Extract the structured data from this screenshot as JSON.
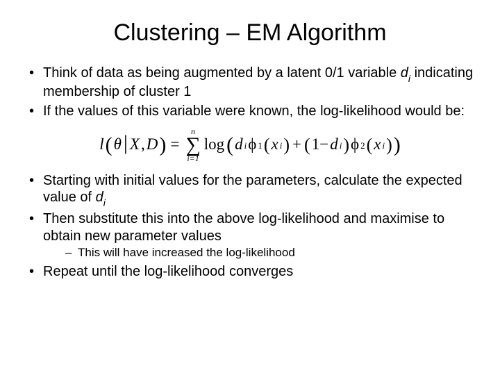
{
  "title": "Clustering – EM Algorithm",
  "bullets": {
    "b1_pre": "Think of data as being augmented by a latent 0/1 variable ",
    "b1_var": "d",
    "b1_sub": "i",
    "b1_post": " indicating membership of cluster 1",
    "b2": "If the values of this variable were known, the log-likelihood would be:",
    "b3_pre": "Starting with initial values for the parameters, calculate the expected value of ",
    "b3_var": "d",
    "b3_sub": "i",
    "b4": "Then substitute this into the above log-likelihood and maximise to obtain new parameter values",
    "b4_sub": "This will have increased the log-likelihood",
    "b5": "Repeat until the log-likelihood converges"
  },
  "formula": {
    "l": "l",
    "theta": "θ",
    "X": "X",
    "D": "D",
    "sum_top": "n",
    "sum_bot": "i=1",
    "log": "log",
    "d": "d",
    "i": "i",
    "phi": "ϕ",
    "one": "1",
    "two": "2",
    "x": "x",
    "plus": "+",
    "oneminus": "1−",
    "eq": "="
  },
  "style": {
    "background": "#ffffff",
    "text_color": "#000000",
    "title_fontsize": 34,
    "body_fontsize": 20,
    "sub_fontsize": 17,
    "formula_fontsize": 23,
    "font_family_body": "Arial",
    "font_family_formula": "Georgia"
  }
}
